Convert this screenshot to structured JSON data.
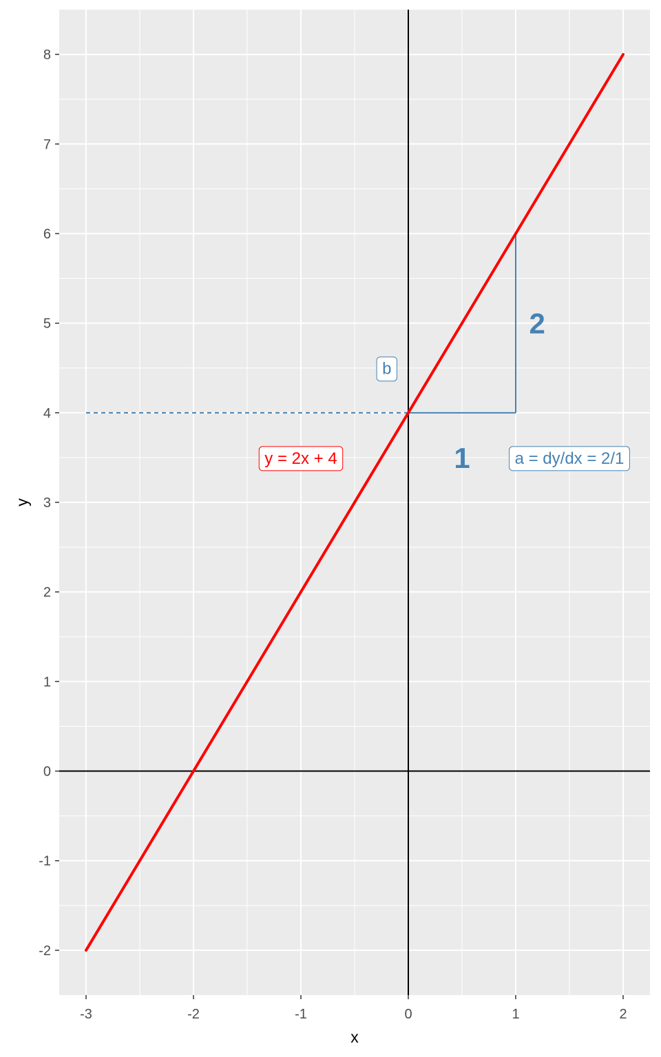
{
  "chart_data": {
    "type": "line",
    "title": "",
    "xlabel": "x",
    "ylabel": "y",
    "xlim": [
      -3.25,
      2.25
    ],
    "ylim": [
      -2.5,
      8.5
    ],
    "x_ticks": [
      "-3",
      "-2",
      "-1",
      "0",
      "1",
      "2"
    ],
    "y_ticks": [
      "-2",
      "-1",
      "0",
      "1",
      "2",
      "3",
      "4",
      "5",
      "6",
      "7",
      "8"
    ],
    "x_tick_values": [
      -3,
      -2,
      -1,
      0,
      1,
      2
    ],
    "y_tick_values": [
      -2,
      -1,
      0,
      1,
      2,
      3,
      4,
      5,
      6,
      7,
      8
    ],
    "grid": true,
    "background_color": "#ebebeb",
    "series": [
      {
        "x": [
          -3,
          2
        ],
        "y": [
          -2,
          8
        ],
        "color": "#ff0000"
      }
    ],
    "reference_lines": {
      "x_axis_at": 0,
      "y_axis_at": 0,
      "intercept_dashed": {
        "from_x": -3,
        "to_x": 0,
        "y": 4
      },
      "slope_run": {
        "from": [
          0,
          4
        ],
        "to": [
          1,
          4
        ]
      },
      "slope_rise": {
        "from": [
          1,
          4
        ],
        "to": [
          1,
          6
        ]
      }
    },
    "annotations": [
      {
        "id": "intercept",
        "text": "b",
        "x": -0.2,
        "y": 4.5,
        "color": "#4682b4",
        "boxed": true
      },
      {
        "id": "equation",
        "text": "y = 2x + 4",
        "x": -1.0,
        "y": 3.5,
        "color": "#ff0000",
        "boxed": true
      },
      {
        "id": "slope",
        "text": "a = dy/dx = 2/1",
        "x": 1.5,
        "y": 3.5,
        "color": "#4682b4",
        "boxed": true
      },
      {
        "id": "run",
        "text": "1",
        "x": 0.5,
        "y": 3.5,
        "color": "#4682b4",
        "boxed": false
      },
      {
        "id": "rise",
        "text": "2",
        "x": 1.2,
        "y": 5.0,
        "color": "#4682b4",
        "boxed": false
      }
    ]
  }
}
